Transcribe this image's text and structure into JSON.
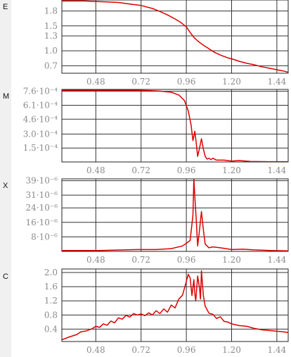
{
  "chart_data": [
    {
      "type": "line",
      "panel_letter": "E",
      "color": "#dd0000",
      "xlim": [
        0.3,
        1.5
      ],
      "ylim": [
        0.55,
        2.02
      ],
      "xticks": [
        0.48,
        0.72,
        0.96,
        1.2,
        1.44
      ],
      "xtick_labels": [
        "0.48",
        "0.72",
        "0.96",
        "1.20",
        "1.44"
      ],
      "yticks": [
        0.7,
        1.0,
        1.3,
        1.5,
        1.8
      ],
      "ytick_labels": [
        "0.7",
        "1.0",
        "1.3",
        "1.5",
        "1.8"
      ],
      "grid": true,
      "series": [
        {
          "x": [
            0.3,
            0.36,
            0.42,
            0.48,
            0.54,
            0.6,
            0.66,
            0.72,
            0.78,
            0.82,
            0.86,
            0.9,
            0.93,
            0.96,
            0.98,
            1.0,
            1.02,
            1.04,
            1.06,
            1.08,
            1.1,
            1.12,
            1.15,
            1.18,
            1.2,
            1.24,
            1.28,
            1.32,
            1.36,
            1.4,
            1.44,
            1.48,
            1.5
          ],
          "y": [
            2.0,
            2.0,
            2.0,
            1.99,
            1.98,
            1.97,
            1.94,
            1.91,
            1.85,
            1.79,
            1.72,
            1.64,
            1.57,
            1.48,
            1.37,
            1.27,
            1.2,
            1.14,
            1.09,
            1.04,
            0.99,
            0.95,
            0.9,
            0.86,
            0.84,
            0.79,
            0.75,
            0.72,
            0.68,
            0.65,
            0.62,
            0.59,
            0.57
          ]
        }
      ]
    },
    {
      "type": "line",
      "panel_letter": "M",
      "color": "#dd0000",
      "xlim": [
        0.3,
        1.5
      ],
      "ylim": [
        0,
        0.00078
      ],
      "xticks": [
        0.48,
        0.72,
        0.96,
        1.2,
        1.44
      ],
      "xtick_labels": [
        "0.48",
        "0.72",
        "0.96",
        "1.20",
        "1.44"
      ],
      "yticks": [
        0.00015,
        0.0003,
        0.00046,
        0.00061,
        0.00076
      ],
      "ytick_labels": [
        "1.5·10⁻⁴",
        "3.0·10⁻⁴",
        "4.6·10⁻⁴",
        "6.1·10⁻⁴",
        "7.6·10⁻⁴"
      ],
      "grid": true,
      "series": [
        {
          "x": [
            0.3,
            0.4,
            0.5,
            0.6,
            0.7,
            0.76,
            0.82,
            0.88,
            0.92,
            0.95,
            0.97,
            0.985,
            0.995,
            1.005,
            1.012,
            1.02,
            1.03,
            1.04,
            1.05,
            1.06,
            1.07,
            1.08,
            1.09,
            1.1,
            1.12,
            1.16,
            1.2,
            1.24,
            1.3,
            1.4,
            1.5
          ],
          "y": [
            0.00077,
            0.00077,
            0.00077,
            0.00077,
            0.00077,
            0.000768,
            0.000762,
            0.00075,
            0.00072,
            0.00066,
            0.00055,
            0.0004,
            0.00023,
            0.00033,
            0.00021,
            6e-05,
            0.00015,
            0.00025,
            0.00014,
            6e-05,
            3e-05,
            4e-05,
            2.5e-05,
            4e-05,
            2e-05,
            2e-05,
            1e-05,
            1.5e-05,
            5e-06,
            3e-06,
            3e-06
          ]
        }
      ]
    },
    {
      "type": "line",
      "panel_letter": "X",
      "color": "#dd0000",
      "xlim": [
        0.3,
        1.5
      ],
      "ylim": [
        0,
        4e-05
      ],
      "xticks": [
        0.48,
        0.72,
        0.96,
        1.2,
        1.44
      ],
      "xtick_labels": [
        "0.48",
        "0.72",
        "0.96",
        "1.20",
        "1.44"
      ],
      "yticks": [
        8e-06,
        1.6e-05,
        2.4e-05,
        3.1e-05,
        3.9e-05
      ],
      "ytick_labels": [
        "8·10⁻⁶",
        "16·10⁻⁶",
        "24·10⁻⁶",
        "31·10⁻⁶",
        "39·10⁻⁶"
      ],
      "grid": true,
      "series": [
        {
          "x": [
            0.3,
            0.5,
            0.7,
            0.8,
            0.88,
            0.94,
            0.98,
            0.995,
            1.0,
            1.005,
            1.012,
            1.02,
            1.03,
            1.04,
            1.05,
            1.06,
            1.07,
            1.08,
            1.1,
            1.14,
            1.2,
            1.26,
            1.32,
            1.4,
            1.5
          ],
          "y": [
            5e-07,
            5e-07,
            1e-06,
            1e-06,
            1.5e-06,
            3e-06,
            6e-06,
            2e-05,
            4e-05,
            3e-05,
            1.8e-05,
            3e-06,
            1.2e-05,
            2.2e-05,
            1.2e-05,
            4e-06,
            3e-06,
            2e-06,
            2.5e-06,
            2e-06,
            1e-06,
            1.2e-06,
            8e-07,
            5e-07,
            3e-07
          ]
        }
      ]
    },
    {
      "type": "line",
      "panel_letter": "C",
      "color": "#dd0000",
      "xlim": [
        0.3,
        1.5
      ],
      "ylim": [
        0.05,
        2.1
      ],
      "xticks": [
        0.48,
        0.72,
        0.96,
        1.2,
        1.44
      ],
      "xtick_labels": [
        "0.48",
        "0.72",
        "0.96",
        "1.20",
        "1.44"
      ],
      "yticks": [
        0.4,
        0.8,
        1.2,
        1.6,
        2.0
      ],
      "ytick_labels": [
        "0.4",
        "0.8",
        "1.2",
        "1.6",
        "2.0"
      ],
      "grid": true,
      "series": [
        {
          "x": [
            0.3,
            0.34,
            0.38,
            0.4,
            0.43,
            0.46,
            0.48,
            0.5,
            0.52,
            0.54,
            0.56,
            0.58,
            0.6,
            0.62,
            0.64,
            0.66,
            0.68,
            0.7,
            0.72,
            0.74,
            0.76,
            0.78,
            0.8,
            0.82,
            0.84,
            0.86,
            0.88,
            0.9,
            0.92,
            0.94,
            0.96,
            0.97,
            0.98,
            0.99,
            1.0,
            1.005,
            1.01,
            1.02,
            1.03,
            1.035,
            1.04,
            1.05,
            1.06,
            1.08,
            1.1,
            1.12,
            1.14,
            1.16,
            1.18,
            1.2,
            1.24,
            1.28,
            1.32,
            1.36,
            1.4,
            1.44,
            1.48,
            1.5
          ],
          "y": [
            0.1,
            0.18,
            0.25,
            0.32,
            0.35,
            0.41,
            0.48,
            0.45,
            0.55,
            0.51,
            0.63,
            0.58,
            0.72,
            0.68,
            0.79,
            0.74,
            0.84,
            0.8,
            0.83,
            0.78,
            0.86,
            0.8,
            0.92,
            0.84,
            0.97,
            0.88,
            1.08,
            1.0,
            1.25,
            1.36,
            1.75,
            1.95,
            1.85,
            1.35,
            1.8,
            1.4,
            1.2,
            1.9,
            1.55,
            1.25,
            2.05,
            1.35,
            1.05,
            0.85,
            0.82,
            0.7,
            0.75,
            0.62,
            0.6,
            0.55,
            0.5,
            0.48,
            0.42,
            0.38,
            0.36,
            0.34,
            0.32,
            0.3
          ]
        }
      ]
    }
  ]
}
